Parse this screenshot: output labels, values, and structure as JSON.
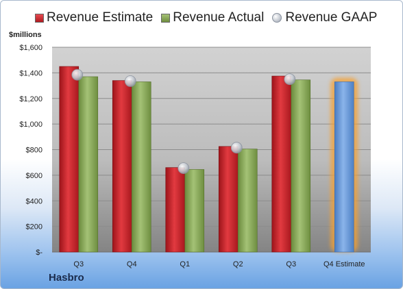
{
  "chart_data": {
    "type": "bar",
    "unit_label": "$millions",
    "company": "Hasbro",
    "categories": [
      "Q3",
      "Q4",
      "Q1",
      "Q2",
      "Q3",
      "Q4 Estimate"
    ],
    "series": [
      {
        "name": "Revenue Estimate",
        "kind": "bar",
        "color": "#c8252c",
        "values": [
          1450,
          1340,
          660,
          825,
          1375,
          null
        ]
      },
      {
        "name": "Revenue Actual",
        "kind": "bar",
        "color": "#8aa957",
        "values": [
          1370,
          1330,
          645,
          805,
          1345,
          1330
        ]
      },
      {
        "name": "Revenue GAAP",
        "kind": "marker",
        "color": "#b8bec8",
        "values": [
          1385,
          1335,
          655,
          815,
          1350,
          null
        ]
      }
    ],
    "estimate_bar_color": "#6a9ad8",
    "estimate_glow_color": "#f5a030",
    "y_ticks": [
      "$-",
      "$200",
      "$400",
      "$600",
      "$800",
      "$1,000",
      "$1,200",
      "$1,400",
      "$1,600"
    ],
    "ylim": [
      0,
      1600
    ],
    "grid": true,
    "legend_position": "top"
  }
}
